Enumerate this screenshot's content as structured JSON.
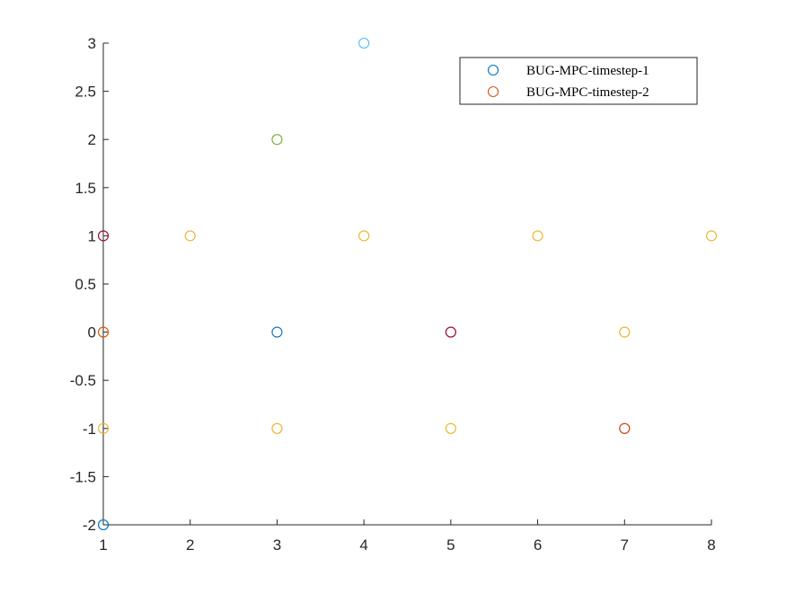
{
  "chart_data": {
    "type": "scatter",
    "title": "",
    "xlabel": "",
    "ylabel": "",
    "xlim": [
      1,
      8
    ],
    "ylim": [
      -2,
      3
    ],
    "xticks": [
      1,
      2,
      3,
      4,
      5,
      6,
      7,
      8
    ],
    "yticks": [
      3,
      2.5,
      2,
      1.5,
      1,
      0.5,
      0,
      -0.5,
      -1,
      -1.5,
      -2
    ],
    "xtick_labels": [
      "1",
      "2",
      "3",
      "4",
      "5",
      "6",
      "7",
      "8"
    ],
    "ytick_labels": [
      "3",
      "2.5",
      "2",
      "1.5",
      "1",
      "0.5",
      "0",
      "-0.5",
      "-1",
      "-1.5",
      "-2"
    ],
    "grid": false,
    "legend_position": "top-right",
    "legend": [
      {
        "label": "BUG-MPC-timestep-1",
        "color": "#0072BD"
      },
      {
        "label": "BUG-MPC-timestep-2",
        "color": "#D95319"
      }
    ],
    "series": [
      {
        "color": "#4DBEEE",
        "points": [
          {
            "x": 4,
            "y": 3
          },
          {
            "x": 1,
            "y": -2
          }
        ]
      },
      {
        "color": "#0072BD",
        "points": [
          {
            "x": 3,
            "y": 0
          },
          {
            "x": 1,
            "y": -2
          }
        ]
      },
      {
        "color": "#77AC30",
        "points": [
          {
            "x": 3,
            "y": 2
          }
        ]
      },
      {
        "color": "#EDB120",
        "points": [
          {
            "x": 2,
            "y": 1
          },
          {
            "x": 4,
            "y": 1
          },
          {
            "x": 6,
            "y": 1
          },
          {
            "x": 8,
            "y": 1
          },
          {
            "x": 1,
            "y": 0
          },
          {
            "x": 7,
            "y": 0
          },
          {
            "x": 1,
            "y": -1
          },
          {
            "x": 3,
            "y": -1
          },
          {
            "x": 5,
            "y": -1
          }
        ]
      },
      {
        "color": "#7E2F8E",
        "points": [
          {
            "x": 1,
            "y": 1
          },
          {
            "x": 5,
            "y": 0
          }
        ]
      },
      {
        "color": "#A2142F",
        "points": [
          {
            "x": 1,
            "y": 1
          },
          {
            "x": 5,
            "y": 0
          },
          {
            "x": 7,
            "y": -1
          }
        ]
      },
      {
        "color": "#D95319",
        "points": [
          {
            "x": 1,
            "y": 0
          },
          {
            "x": 7,
            "y": -1
          }
        ]
      }
    ]
  }
}
